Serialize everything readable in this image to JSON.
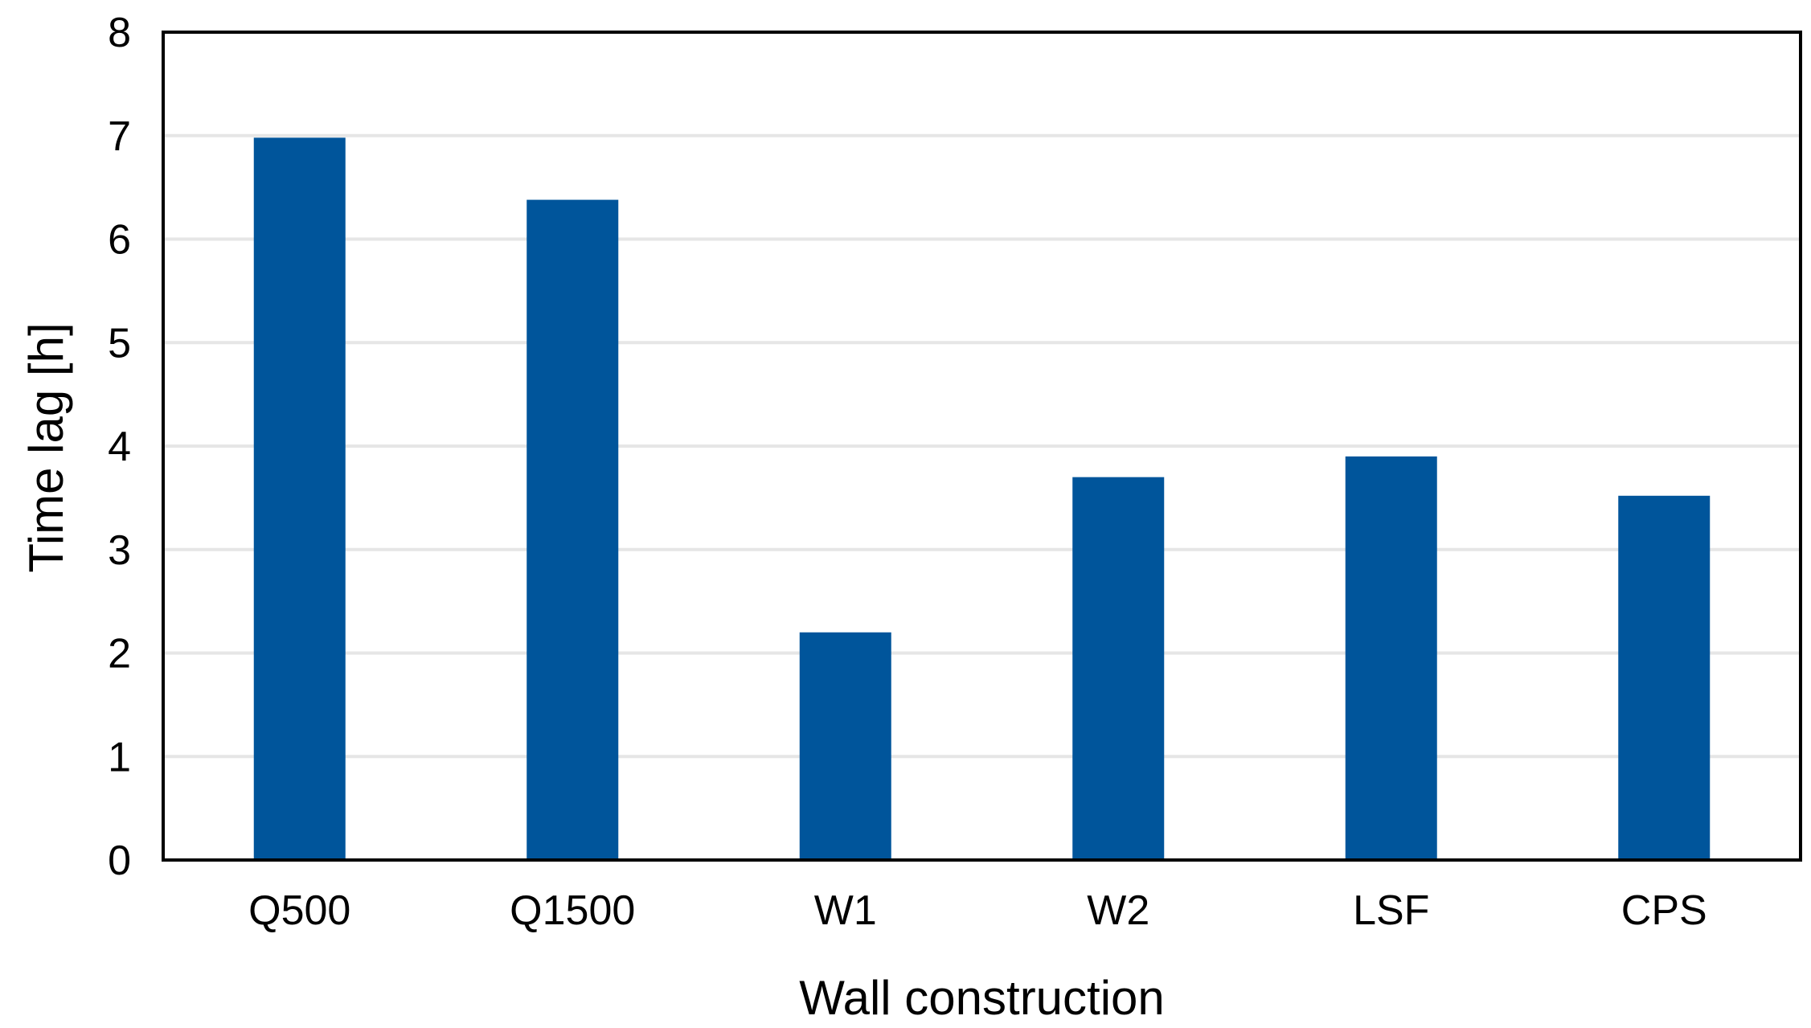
{
  "chart_data": {
    "type": "bar",
    "categories": [
      "Q500",
      "Q1500",
      "W1",
      "W2",
      "LSF",
      "CPS"
    ],
    "series": [
      {
        "values": [
          6.98,
          6.38,
          2.2,
          3.7,
          3.9,
          3.52
        ],
        "color": "#00559b"
      }
    ],
    "title": "",
    "xlabel": "Wall construction",
    "ylabel": "Time lag [h]",
    "ylim": [
      0,
      8
    ],
    "yticks": [
      0,
      1,
      2,
      3,
      4,
      5,
      6,
      7,
      8
    ],
    "grid": true,
    "gridColor": "#e6e6e6",
    "legend": "none"
  }
}
